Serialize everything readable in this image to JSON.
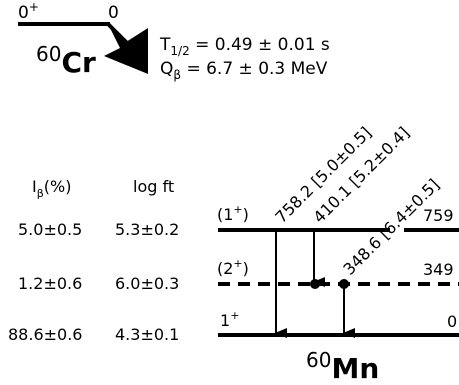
{
  "parent": {
    "spin_parity": "0",
    "spin_parity_sup": "+",
    "energy": "0",
    "mass_number": "60",
    "element": "Cr",
    "half_life": {
      "label": "T",
      "sub": "1/2",
      "value": " = 0.49 ± 0.01 s"
    },
    "q_value": {
      "label": "Q",
      "sub": "β",
      "value": " = 6.7 ± 0.3 MeV"
    }
  },
  "daughter": {
    "mass_number": "60",
    "element": "Mn"
  },
  "columns": {
    "intensity": {
      "label": "I",
      "sub": "β",
      "suffix": "(%)"
    },
    "logft": "log ft"
  },
  "levels": [
    {
      "id": "level-759",
      "energy": "759",
      "spin_parity": "(1",
      "spin_parity_sup": "+",
      "spin_parity_end": ")",
      "intensity": "5.0±0.5",
      "logft": "5.3±0.2",
      "line_style": "solid"
    },
    {
      "id": "level-349",
      "energy": "349",
      "spin_parity": "(2",
      "spin_parity_sup": "+",
      "spin_parity_end": ")",
      "intensity": "1.2±0.6",
      "logft": "6.0±0.3",
      "line_style": "dashed"
    },
    {
      "id": "level-0",
      "energy": "0",
      "spin_parity": "1",
      "spin_parity_sup": "+",
      "spin_parity_end": "",
      "intensity": "88.6±0.6",
      "logft": "4.3±0.1",
      "line_style": "solid"
    }
  ],
  "transitions": [
    {
      "id": "gamma-758",
      "label": "758.2 [5.0±0.5]",
      "from": "759",
      "to": "0"
    },
    {
      "id": "gamma-410",
      "label": "410.1 [5.2±0.4]",
      "from": "759",
      "to": "349"
    },
    {
      "id": "gamma-349",
      "label": "348.6 [6.4±0.5]",
      "from": "349",
      "to": "0"
    }
  ]
}
